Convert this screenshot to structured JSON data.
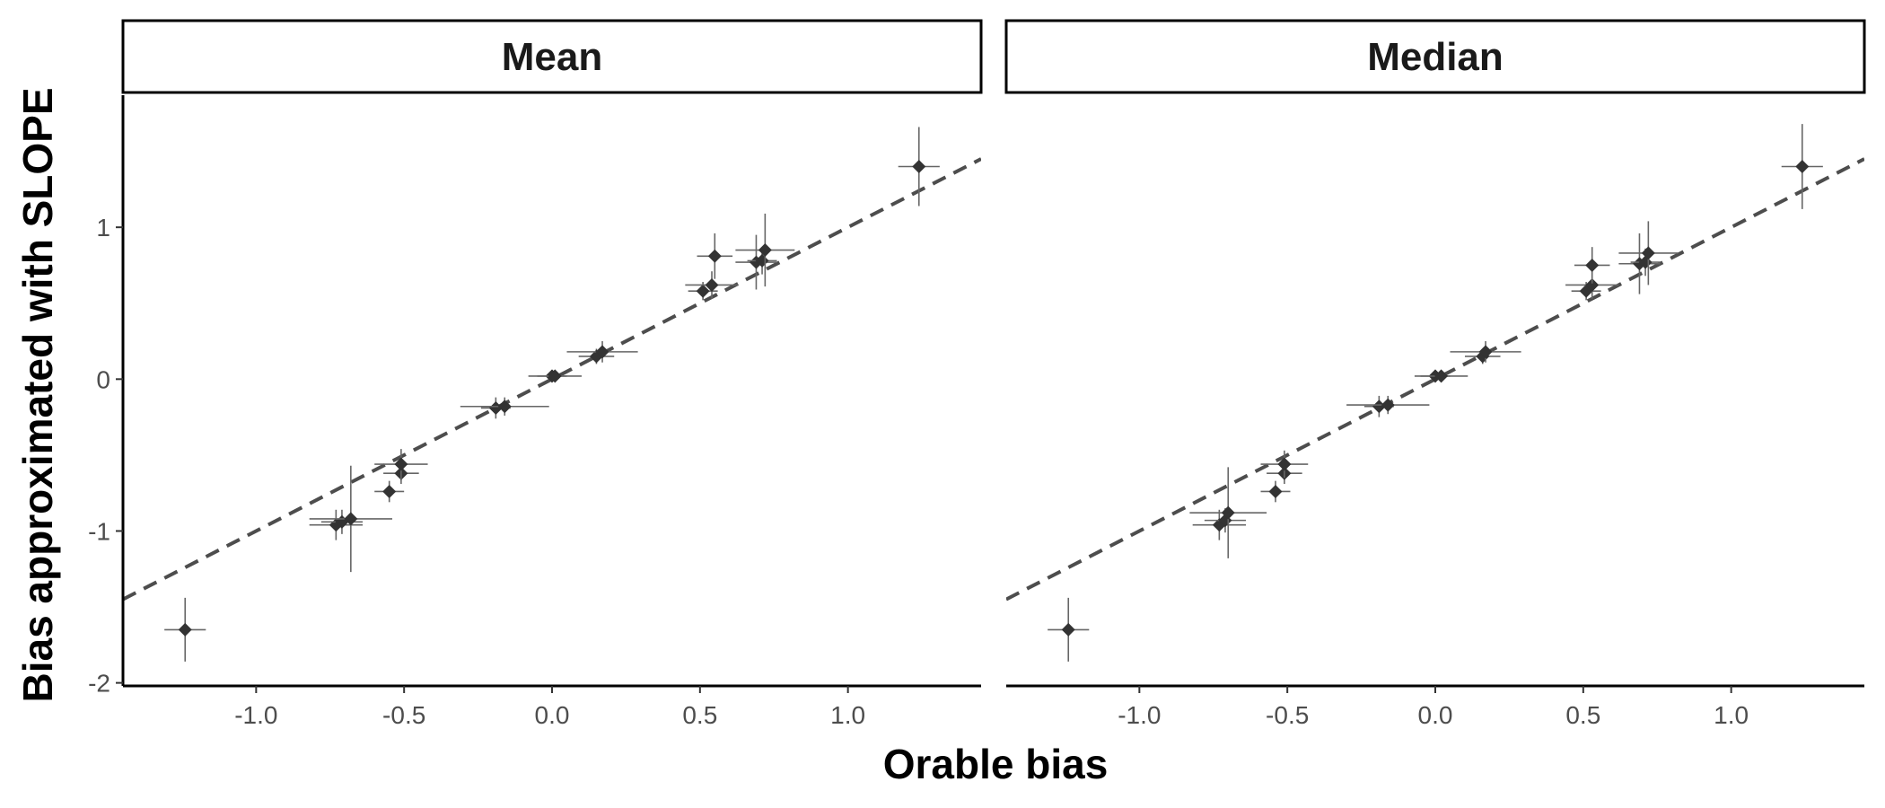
{
  "chart_data": {
    "type": "scatter",
    "xlabel": "Orable bias",
    "ylabel": "Bias approximated with SLOPE",
    "xlim": [
      -1.45,
      1.45
    ],
    "ylim": [
      -2.02,
      1.87
    ],
    "x_ticks": [
      -1.0,
      -0.5,
      0.0,
      0.5,
      1.0
    ],
    "x_tick_labels": [
      "-1.0",
      "-0.5",
      "0.0",
      "0.5",
      "1.0"
    ],
    "y_ticks": [
      -2,
      -1,
      0,
      1
    ],
    "y_tick_labels": [
      "-2",
      "-1",
      "0",
      "1"
    ],
    "grid": false,
    "reference_line": {
      "slope": 1,
      "intercept": 0,
      "style": "dashed"
    },
    "panels": [
      {
        "title": "Mean",
        "points": [
          {
            "x": -1.24,
            "y": -1.65,
            "xerr": 0.07,
            "yerr": 0.21
          },
          {
            "x": -0.73,
            "y": -0.96,
            "xerr": 0.09,
            "yerr": 0.1
          },
          {
            "x": -0.71,
            "y": -0.94,
            "xerr": 0.07,
            "yerr": 0.08
          },
          {
            "x": -0.68,
            "y": -0.92,
            "xerr": 0.14,
            "yerr": 0.35
          },
          {
            "x": -0.55,
            "y": -0.74,
            "xerr": 0.05,
            "yerr": 0.07
          },
          {
            "x": -0.51,
            "y": -0.62,
            "xerr": 0.06,
            "yerr": 0.07
          },
          {
            "x": -0.51,
            "y": -0.56,
            "xerr": 0.09,
            "yerr": 0.1
          },
          {
            "x": -0.19,
            "y": -0.19,
            "xerr": 0.05,
            "yerr": 0.07
          },
          {
            "x": -0.16,
            "y": -0.18,
            "xerr": 0.15,
            "yerr": 0.06
          },
          {
            "x": 0.0,
            "y": 0.02,
            "xerr": 0.05,
            "yerr": 0.04
          },
          {
            "x": 0.01,
            "y": 0.02,
            "xerr": 0.09,
            "yerr": 0.03
          },
          {
            "x": 0.15,
            "y": 0.15,
            "xerr": 0.06,
            "yerr": 0.05
          },
          {
            "x": 0.17,
            "y": 0.18,
            "xerr": 0.12,
            "yerr": 0.07
          },
          {
            "x": 0.51,
            "y": 0.58,
            "xerr": 0.05,
            "yerr": 0.06
          },
          {
            "x": 0.54,
            "y": 0.62,
            "xerr": 0.09,
            "yerr": 0.09
          },
          {
            "x": 0.55,
            "y": 0.81,
            "xerr": 0.06,
            "yerr": 0.15
          },
          {
            "x": 0.69,
            "y": 0.77,
            "xerr": 0.07,
            "yerr": 0.18
          },
          {
            "x": 0.71,
            "y": 0.78,
            "xerr": 0.05,
            "yerr": 0.09
          },
          {
            "x": 0.72,
            "y": 0.85,
            "xerr": 0.1,
            "yerr": 0.24
          },
          {
            "x": 1.24,
            "y": 1.4,
            "xerr": 0.07,
            "yerr": 0.26
          }
        ]
      },
      {
        "title": "Median",
        "points": [
          {
            "x": -1.24,
            "y": -1.65,
            "xerr": 0.07,
            "yerr": 0.21
          },
          {
            "x": -0.73,
            "y": -0.96,
            "xerr": 0.09,
            "yerr": 0.1
          },
          {
            "x": -0.71,
            "y": -0.93,
            "xerr": 0.07,
            "yerr": 0.08
          },
          {
            "x": -0.7,
            "y": -0.88,
            "xerr": 0.13,
            "yerr": 0.3
          },
          {
            "x": -0.54,
            "y": -0.74,
            "xerr": 0.05,
            "yerr": 0.07
          },
          {
            "x": -0.51,
            "y": -0.62,
            "xerr": 0.06,
            "yerr": 0.07
          },
          {
            "x": -0.51,
            "y": -0.56,
            "xerr": 0.08,
            "yerr": 0.09
          },
          {
            "x": -0.19,
            "y": -0.18,
            "xerr": 0.05,
            "yerr": 0.07
          },
          {
            "x": -0.16,
            "y": -0.17,
            "xerr": 0.14,
            "yerr": 0.06
          },
          {
            "x": 0.0,
            "y": 0.02,
            "xerr": 0.05,
            "yerr": 0.04
          },
          {
            "x": 0.02,
            "y": 0.02,
            "xerr": 0.09,
            "yerr": 0.03
          },
          {
            "x": 0.16,
            "y": 0.15,
            "xerr": 0.06,
            "yerr": 0.05
          },
          {
            "x": 0.17,
            "y": 0.18,
            "xerr": 0.12,
            "yerr": 0.07
          },
          {
            "x": 0.51,
            "y": 0.58,
            "xerr": 0.05,
            "yerr": 0.06
          },
          {
            "x": 0.53,
            "y": 0.62,
            "xerr": 0.09,
            "yerr": 0.09
          },
          {
            "x": 0.53,
            "y": 0.75,
            "xerr": 0.06,
            "yerr": 0.12
          },
          {
            "x": 0.69,
            "y": 0.76,
            "xerr": 0.07,
            "yerr": 0.2
          },
          {
            "x": 0.71,
            "y": 0.77,
            "xerr": 0.05,
            "yerr": 0.09
          },
          {
            "x": 0.72,
            "y": 0.83,
            "xerr": 0.1,
            "yerr": 0.21
          },
          {
            "x": 1.24,
            "y": 1.4,
            "xerr": 0.07,
            "yerr": 0.28
          }
        ]
      }
    ]
  },
  "colors": {
    "point": "#333333",
    "error_bar": "#666666",
    "reference_line": "#4d4d4d",
    "axis": "#000000",
    "tick_label": "#4d4d4d"
  }
}
